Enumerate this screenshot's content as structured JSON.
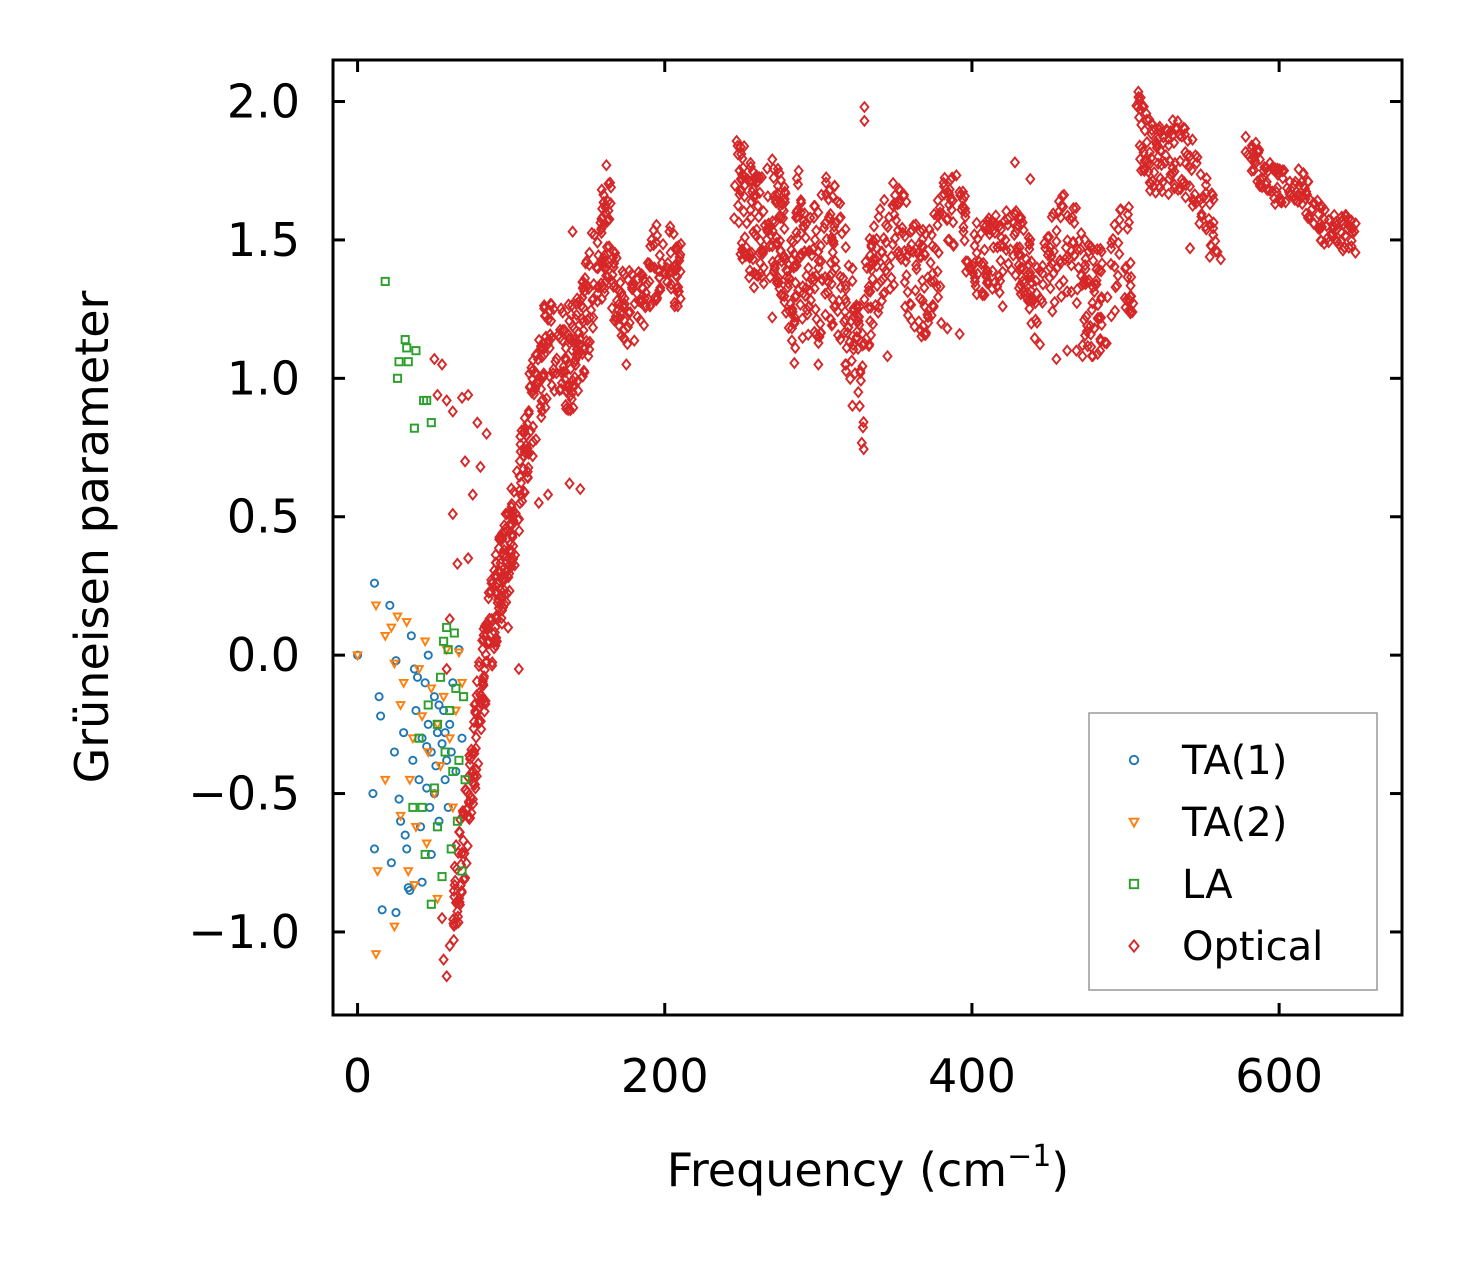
{
  "chart_data": {
    "type": "scatter",
    "title": "",
    "xlabel": "Frequency (cm",
    "xlabel_sup": "−1",
    "xlabel_end": ")",
    "ylabel": "Grüneisen parameter",
    "xlim": [
      -16,
      680
    ],
    "ylim": [
      -1.3,
      2.15
    ],
    "xticks": [
      0,
      200,
      400,
      600
    ],
    "xtick_labels": [
      "0",
      "200",
      "400",
      "600"
    ],
    "yticks": [
      -1.0,
      -0.5,
      0.0,
      0.5,
      1.0,
      1.5,
      2.0
    ],
    "ytick_labels": [
      "−1.0",
      "−0.5",
      "0.0",
      "0.5",
      "1.0",
      "1.5",
      "2.0"
    ],
    "grid": false,
    "legend_position": "bottom-right",
    "series": [
      {
        "name": "TA(1)",
        "marker": "circle",
        "color": "#1f77b4",
        "points": [
          [
            0,
            0.0
          ],
          [
            11,
            0.26
          ],
          [
            14,
            -0.15
          ],
          [
            15,
            -0.22
          ],
          [
            21,
            0.18
          ],
          [
            24,
            -0.35
          ],
          [
            25,
            -0.02
          ],
          [
            27,
            -0.52
          ],
          [
            28,
            -0.6
          ],
          [
            30,
            -0.28
          ],
          [
            32,
            -0.7
          ],
          [
            33,
            -0.84
          ],
          [
            35,
            0.07
          ],
          [
            36,
            -0.38
          ],
          [
            37,
            -0.05
          ],
          [
            38,
            -0.2
          ],
          [
            40,
            -0.45
          ],
          [
            41,
            -0.62
          ],
          [
            42,
            -0.3
          ],
          [
            44,
            -0.1
          ],
          [
            45,
            -0.48
          ],
          [
            46,
            -0.25
          ],
          [
            47,
            -0.55
          ],
          [
            48,
            -0.35
          ],
          [
            50,
            -0.15
          ],
          [
            51,
            -0.4
          ],
          [
            52,
            -0.28
          ],
          [
            53,
            -0.6
          ],
          [
            55,
            -0.32
          ],
          [
            56,
            -0.2
          ],
          [
            57,
            -0.45
          ],
          [
            58,
            -0.38
          ],
          [
            60,
            -0.25
          ],
          [
            61,
            -0.35
          ],
          [
            62,
            -0.1
          ],
          [
            64,
            -0.42
          ],
          [
            66,
            0.02
          ],
          [
            68,
            -0.3
          ],
          [
            10,
            -0.5
          ],
          [
            11,
            -0.7
          ],
          [
            16,
            -0.92
          ],
          [
            22,
            -0.75
          ],
          [
            25,
            -0.93
          ],
          [
            31,
            -0.65
          ],
          [
            34,
            -0.85
          ],
          [
            42,
            -0.82
          ],
          [
            48,
            -0.72
          ],
          [
            59,
            -0.55
          ],
          [
            39,
            -0.08
          ],
          [
            46,
            0.0
          ],
          [
            53,
            -0.18
          ],
          [
            45,
            -0.33
          ],
          [
            50,
            -0.5
          ],
          [
            57,
            -0.28
          ]
        ]
      },
      {
        "name": "TA(2)",
        "marker": "triangle-down",
        "color": "#ff7f0e",
        "points": [
          [
            0,
            0.0
          ],
          [
            12,
            0.18
          ],
          [
            18,
            0.07
          ],
          [
            22,
            0.1
          ],
          [
            24,
            -0.03
          ],
          [
            26,
            0.14
          ],
          [
            28,
            -0.18
          ],
          [
            30,
            -0.1
          ],
          [
            32,
            0.12
          ],
          [
            34,
            -0.45
          ],
          [
            36,
            -0.3
          ],
          [
            38,
            -0.62
          ],
          [
            40,
            -0.05
          ],
          [
            42,
            -0.22
          ],
          [
            44,
            0.05
          ],
          [
            46,
            -0.35
          ],
          [
            48,
            -0.12
          ],
          [
            50,
            -0.5
          ],
          [
            52,
            -0.25
          ],
          [
            54,
            -0.4
          ],
          [
            56,
            -0.15
          ],
          [
            58,
            0.02
          ],
          [
            60,
            -0.3
          ],
          [
            62,
            -0.55
          ],
          [
            64,
            -0.2
          ],
          [
            66,
            0.01
          ],
          [
            68,
            -0.1
          ],
          [
            12,
            -1.08
          ],
          [
            13,
            -0.78
          ],
          [
            18,
            -0.45
          ],
          [
            24,
            -0.98
          ],
          [
            28,
            -0.58
          ],
          [
            33,
            -0.78
          ],
          [
            37,
            -0.83
          ],
          [
            45,
            -0.68
          ],
          [
            52,
            -0.88
          ]
        ]
      },
      {
        "name": "LA",
        "marker": "square",
        "color": "#2ca02c",
        "points": [
          [
            18,
            1.35
          ],
          [
            26,
            1.0
          ],
          [
            27,
            1.06
          ],
          [
            31,
            1.14
          ],
          [
            32,
            1.11
          ],
          [
            33,
            1.06
          ],
          [
            38,
            1.1
          ],
          [
            37,
            0.82
          ],
          [
            43,
            0.92
          ],
          [
            45,
            0.92
          ],
          [
            48,
            0.84
          ],
          [
            40,
            -0.3
          ],
          [
            42,
            -0.55
          ],
          [
            44,
            -0.72
          ],
          [
            46,
            -0.18
          ],
          [
            48,
            -0.9
          ],
          [
            50,
            -0.48
          ],
          [
            52,
            -0.62
          ],
          [
            54,
            -0.08
          ],
          [
            56,
            0.05
          ],
          [
            57,
            -0.35
          ],
          [
            58,
            0.1
          ],
          [
            60,
            -0.2
          ],
          [
            61,
            -0.7
          ],
          [
            62,
            -0.42
          ],
          [
            63,
            0.08
          ],
          [
            64,
            -0.12
          ],
          [
            65,
            -0.6
          ],
          [
            66,
            -0.38
          ],
          [
            68,
            -0.78
          ],
          [
            69,
            -0.15
          ],
          [
            70,
            -0.45
          ],
          [
            36,
            -0.55
          ],
          [
            52,
            -0.25
          ],
          [
            55,
            -0.8
          ],
          [
            59,
            0.02
          ]
        ]
      },
      {
        "name": "Optical",
        "marker": "diamond",
        "color": "#d62728",
        "segments": [
          {
            "f0": 62,
            "f1": 110,
            "g0": -0.85,
            "g1": 0.85,
            "spread": 0.35,
            "n": 260
          },
          {
            "f0": 110,
            "f1": 165,
            "g0": 0.85,
            "g1": 1.45,
            "spread": 0.4,
            "n": 240
          },
          {
            "f0": 165,
            "f1": 212,
            "g0": 1.3,
            "g1": 1.4,
            "spread": 0.28,
            "n": 140
          },
          {
            "f0": 245,
            "f1": 285,
            "g0": 1.8,
            "g1": 1.3,
            "spread": 0.45,
            "n": 180
          },
          {
            "f0": 285,
            "f1": 330,
            "g0": 1.6,
            "g1": 1.1,
            "spread": 0.55,
            "n": 180
          },
          {
            "f0": 330,
            "f1": 380,
            "g0": 1.4,
            "g1": 1.45,
            "spread": 0.4,
            "n": 160
          },
          {
            "f0": 380,
            "f1": 440,
            "g0": 1.55,
            "g1": 1.4,
            "spread": 0.3,
            "n": 160
          },
          {
            "f0": 440,
            "f1": 505,
            "g0": 1.4,
            "g1": 1.35,
            "spread": 0.4,
            "n": 170
          },
          {
            "f0": 507,
            "f1": 560,
            "g0": 1.92,
            "g1": 1.6,
            "spread": 0.28,
            "n": 140
          },
          {
            "f0": 578,
            "f1": 650,
            "g0": 1.82,
            "g1": 1.48,
            "spread": 0.14,
            "n": 150
          }
        ],
        "outliers": [
          [
            50,
            1.07
          ],
          [
            55,
            1.05
          ],
          [
            52,
            0.94
          ],
          [
            58,
            0.92
          ],
          [
            62,
            0.88
          ],
          [
            68,
            0.93
          ],
          [
            72,
            0.94
          ],
          [
            78,
            0.84
          ],
          [
            84,
            0.8
          ],
          [
            70,
            0.7
          ],
          [
            75,
            0.58
          ],
          [
            80,
            0.68
          ],
          [
            62,
            0.51
          ],
          [
            65,
            0.33
          ],
          [
            72,
            0.35
          ],
          [
            60,
            0.13
          ],
          [
            58,
            -0.05
          ],
          [
            55,
            -0.95
          ],
          [
            56,
            -1.1
          ],
          [
            58,
            -1.16
          ],
          [
            60,
            -1.05
          ],
          [
            92,
            0.17
          ],
          [
            98,
            0.1
          ],
          [
            105,
            -0.05
          ],
          [
            118,
            0.55
          ],
          [
            124,
            0.58
          ],
          [
            138,
            0.62
          ],
          [
            145,
            0.6
          ],
          [
            162,
            1.77
          ],
          [
            140,
            1.53
          ],
          [
            165,
            1.69
          ],
          [
            175,
            1.05
          ],
          [
            190,
            1.35
          ],
          [
            330,
            1.98
          ],
          [
            330,
            1.93
          ],
          [
            318,
            1.05
          ],
          [
            345,
            1.08
          ],
          [
            380,
            1.2
          ],
          [
            384,
            1.18
          ],
          [
            392,
            1.16
          ],
          [
            428,
            1.78
          ],
          [
            438,
            1.72
          ],
          [
            418,
            1.31
          ],
          [
            420,
            1.26
          ],
          [
            468,
            1.1
          ],
          [
            472,
            1.08
          ],
          [
            542,
            1.47
          ],
          [
            562,
            1.43
          ],
          [
            610,
            1.7
          ],
          [
            612,
            1.66
          ],
          [
            270,
            1.22
          ],
          [
            300,
            1.05
          ],
          [
            326,
            0.95
          ],
          [
            472,
            1.12
          ],
          [
            455,
            1.07
          ],
          [
            462,
            1.1
          ],
          [
            508,
            1.98
          ]
        ]
      }
    ]
  }
}
